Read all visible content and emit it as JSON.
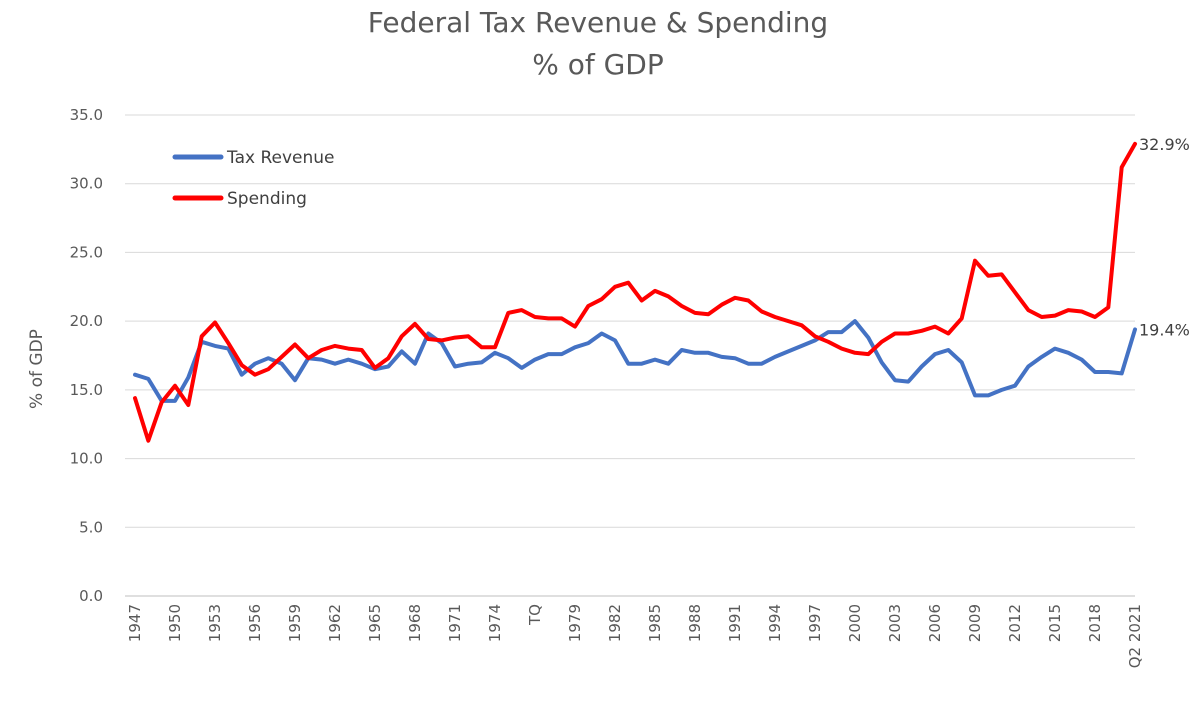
{
  "chart_data": {
    "type": "line",
    "title": "Federal Tax Revenue & Spending",
    "subtitle": "% of GDP",
    "ylabel": "% of GDP",
    "xlabel": "",
    "ylim": [
      0,
      35
    ],
    "y_ticks": [
      "0.0",
      "5.0",
      "10.0",
      "15.0",
      "20.0",
      "25.0",
      "30.0",
      "35.0"
    ],
    "grid": "horizontal",
    "legend": "top-left",
    "categories": [
      "1947",
      "1948",
      "1949",
      "1950",
      "1951",
      "1952",
      "1953",
      "1954",
      "1955",
      "1956",
      "1957",
      "1958",
      "1959",
      "1960",
      "1961",
      "1962",
      "1963",
      "1964",
      "1965",
      "1966",
      "1967",
      "1968",
      "1969",
      "1970",
      "1971",
      "1972",
      "1973",
      "1974",
      "1975",
      "1976",
      "TQ",
      "1977",
      "1978",
      "1979",
      "1980",
      "1981",
      "1982",
      "1983",
      "1984",
      "1985",
      "1986",
      "1987",
      "1988",
      "1989",
      "1990",
      "1991",
      "1992",
      "1993",
      "1994",
      "1995",
      "1996",
      "1997",
      "1998",
      "1999",
      "2000",
      "2001",
      "2002",
      "2003",
      "2004",
      "2005",
      "2006",
      "2007",
      "2008",
      "2009",
      "2010",
      "2011",
      "2012",
      "2013",
      "2014",
      "2015",
      "2016",
      "2017",
      "2018",
      "2019",
      "2020",
      "Q2 2021"
    ],
    "x_tick_labels": [
      "1947",
      "1950",
      "1953",
      "1956",
      "1959",
      "1962",
      "1965",
      "1968",
      "1971",
      "1974",
      "TQ",
      "1979",
      "1982",
      "1985",
      "1988",
      "1991",
      "1994",
      "1997",
      "2000",
      "2003",
      "2006",
      "2009",
      "2012",
      "2015",
      "2018",
      "Q2 2021"
    ],
    "series": [
      {
        "name": "Tax Revenue",
        "color": "#4472c4",
        "end_label": "19.4%",
        "values": [
          16.1,
          15.8,
          14.2,
          14.2,
          15.9,
          18.5,
          18.2,
          18.0,
          16.1,
          16.9,
          17.3,
          16.9,
          15.7,
          17.3,
          17.2,
          16.9,
          17.2,
          16.9,
          16.5,
          16.7,
          17.8,
          16.9,
          19.1,
          18.4,
          16.7,
          16.9,
          17.0,
          17.7,
          17.3,
          16.6,
          17.2,
          17.6,
          17.6,
          18.1,
          18.4,
          19.1,
          18.6,
          16.9,
          16.9,
          17.2,
          16.9,
          17.9,
          17.7,
          17.7,
          17.4,
          17.3,
          16.9,
          16.9,
          17.4,
          17.8,
          18.2,
          18.6,
          19.2,
          19.2,
          20.0,
          18.8,
          17.0,
          15.7,
          15.6,
          16.7,
          17.6,
          17.9,
          17.0,
          14.6,
          14.6,
          15.0,
          15.3,
          16.7,
          17.4,
          18.0,
          17.7,
          17.2,
          16.3,
          16.3,
          16.2,
          19.4
        ]
      },
      {
        "name": "Spending",
        "color": "#ff0000",
        "end_label": "32.9%",
        "values": [
          14.4,
          11.3,
          14.1,
          15.3,
          13.9,
          18.9,
          19.9,
          18.4,
          16.8,
          16.1,
          16.5,
          17.4,
          18.3,
          17.3,
          17.9,
          18.2,
          18.0,
          17.9,
          16.6,
          17.3,
          18.9,
          19.8,
          18.7,
          18.6,
          18.8,
          18.9,
          18.1,
          18.1,
          20.6,
          20.8,
          20.3,
          20.2,
          20.2,
          19.6,
          21.1,
          21.6,
          22.5,
          22.8,
          21.5,
          22.2,
          21.8,
          21.1,
          20.6,
          20.5,
          21.2,
          21.7,
          21.5,
          20.7,
          20.3,
          20.0,
          19.7,
          18.9,
          18.5,
          18.0,
          17.7,
          17.6,
          18.5,
          19.1,
          19.1,
          19.3,
          19.6,
          19.1,
          20.2,
          24.4,
          23.3,
          23.4,
          22.1,
          20.8,
          20.3,
          20.4,
          20.8,
          20.7,
          20.3,
          21.0,
          31.2,
          32.9
        ]
      }
    ]
  }
}
